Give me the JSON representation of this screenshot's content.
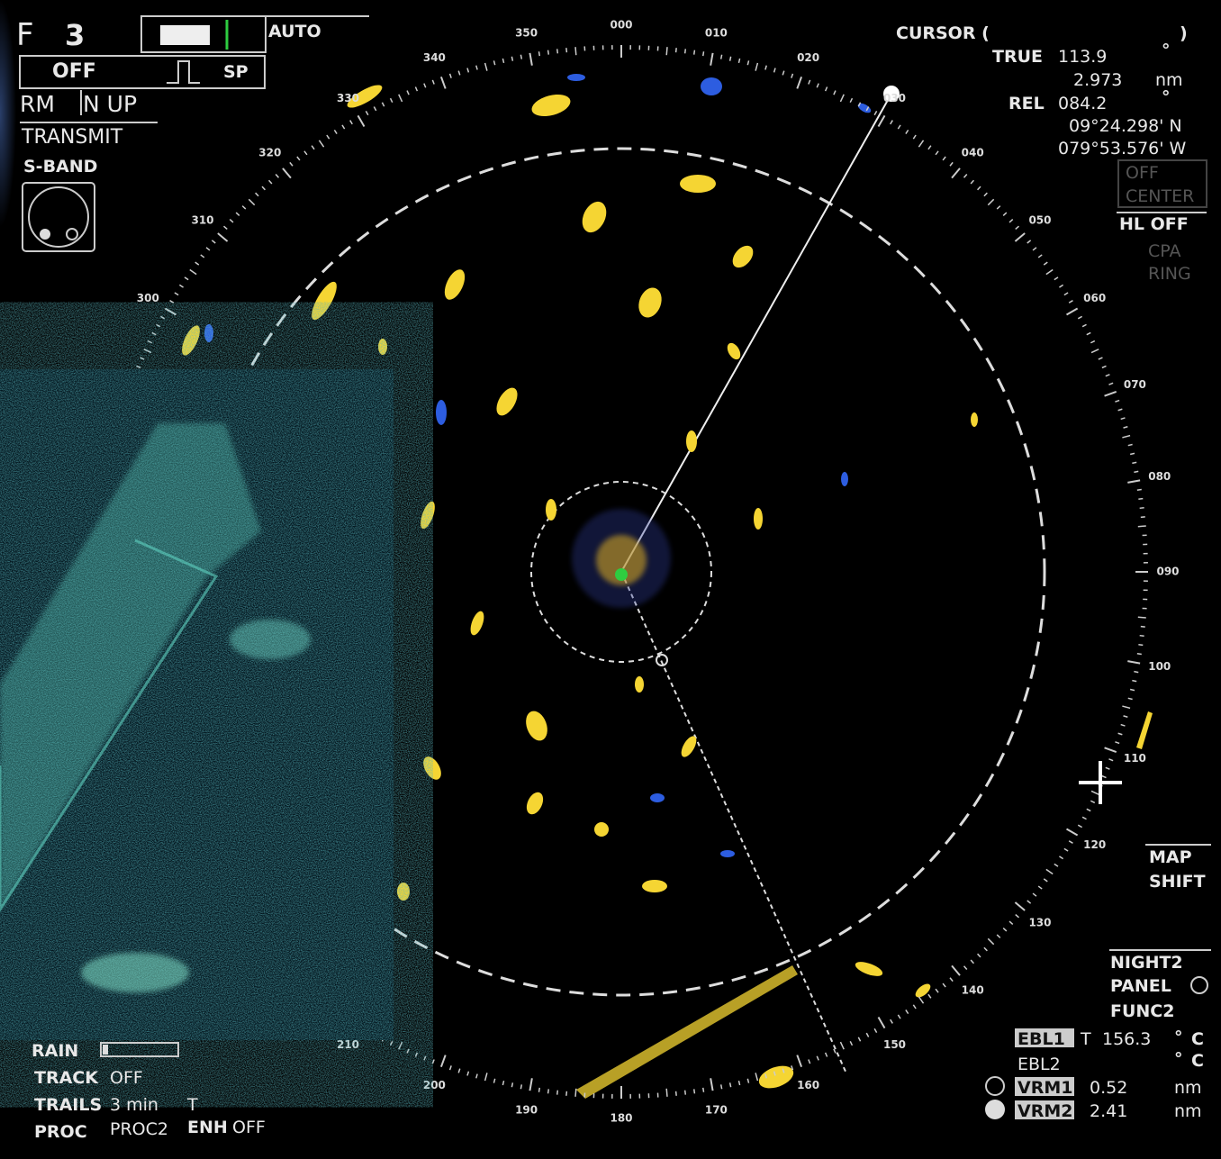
{
  "status": {
    "f": "F",
    "range": "3",
    "gain": "AUTO",
    "off": "OFF",
    "pulse": "SP",
    "motion": "RM",
    "orientation": "N UP",
    "mode": "TRANSMIT",
    "band": "S-BAND"
  },
  "cursor": {
    "title": "CURSOR (",
    "close": ")",
    "true_label": "TRUE",
    "true_value": "113.9",
    "true_unit": "°",
    "range_value": "2.973",
    "range_unit": "nm",
    "rel_label": "REL",
    "rel_value": "084.2",
    "rel_unit": "°",
    "lat": "09°24.298' N",
    "lon": "079°53.576' W"
  },
  "menu": {
    "off_center": [
      "OFF",
      "CENTER"
    ],
    "hl": "HL OFF",
    "cpa_ring": [
      "CPA",
      "RING"
    ],
    "map_shift": [
      "MAP",
      "SHIFT"
    ],
    "night": "NIGHT2",
    "panel": "PANEL",
    "func": "FUNC2"
  },
  "markers": {
    "ebl1": {
      "label": "EBL1",
      "ref": "T",
      "value": "156.3",
      "unit": "°",
      "mode": "C"
    },
    "ebl2": {
      "label": "EBL2",
      "unit": "°",
      "mode": "C"
    },
    "vrm1": {
      "label": "VRM1",
      "value": "0.52",
      "unit": "nm"
    },
    "vrm2": {
      "label": "VRM2",
      "value": "2.41",
      "unit": "nm"
    }
  },
  "settings": {
    "rain": "RAIN",
    "track": "TRACK",
    "track_value": "OFF",
    "trails": "TRAILS",
    "trails_value": "3 min",
    "trails_ref": "T",
    "proc": "PROC",
    "proc_value": "PROC2",
    "enh": "ENH",
    "enh_value": "OFF"
  },
  "bearings": [
    "000",
    "010",
    "020",
    "030",
    "040",
    "050",
    "060",
    "070",
    "080",
    "090",
    "100",
    "110",
    "120",
    "130",
    "140",
    "150",
    "160",
    "170",
    "180",
    "190",
    "200",
    "210",
    "300",
    "310",
    "320",
    "330",
    "340",
    "350"
  ]
}
